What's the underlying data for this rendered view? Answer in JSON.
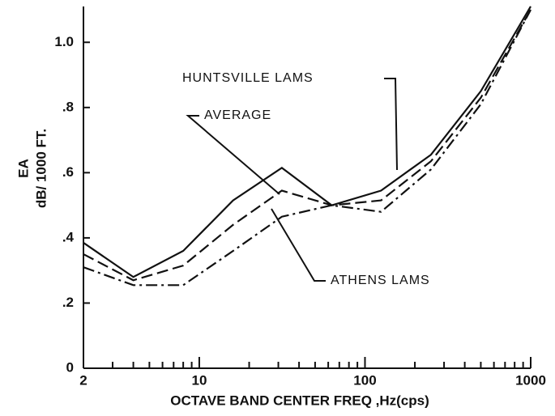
{
  "chart_data": {
    "type": "line",
    "x_label": "OCTAVE BAND CENTER FREQ ,Hz(cps)",
    "y_label_lines": [
      "EA",
      "dB/ 1000 FT."
    ],
    "x": [
      2,
      4,
      8,
      16,
      31.5,
      63,
      125,
      250,
      500,
      1000
    ],
    "series": [
      {
        "name": "HUNTSVILLE LAMS",
        "color": "#111111",
        "style": "solid",
        "values": [
          0.385,
          0.28,
          0.36,
          0.515,
          0.615,
          0.5,
          0.545,
          0.655,
          0.85,
          1.11
        ]
      },
      {
        "name": "AVERAGE",
        "color": "#111111",
        "style": "dashed",
        "values": [
          0.35,
          0.27,
          0.315,
          0.44,
          0.545,
          0.5,
          0.515,
          0.635,
          0.83,
          1.1
        ]
      },
      {
        "name": "ATHENS LAMS",
        "color": "#111111",
        "style": "dashdot",
        "values": [
          0.31,
          0.255,
          0.255,
          0.36,
          0.465,
          0.5,
          0.48,
          0.61,
          0.81,
          1.1
        ]
      }
    ],
    "xlog": true,
    "xlim": [
      2,
      1000
    ],
    "xticks": [
      2,
      10,
      100,
      1000
    ],
    "xminorticks": [
      3,
      4,
      5,
      6,
      7,
      8,
      9,
      20,
      30,
      40,
      50,
      60,
      70,
      80,
      90,
      200,
      300,
      400,
      500,
      600,
      700,
      800,
      900
    ],
    "ylim": [
      0,
      1.1
    ],
    "yticks": [
      0,
      {
        "value": 0.2,
        "label": ".2"
      },
      {
        "value": 0.4,
        "label": ".4"
      },
      {
        "value": 0.6,
        "label": ".6"
      },
      {
        "value": 0.8,
        "label": ".8"
      },
      {
        "value": 1,
        "label": "1.0"
      }
    ]
  }
}
